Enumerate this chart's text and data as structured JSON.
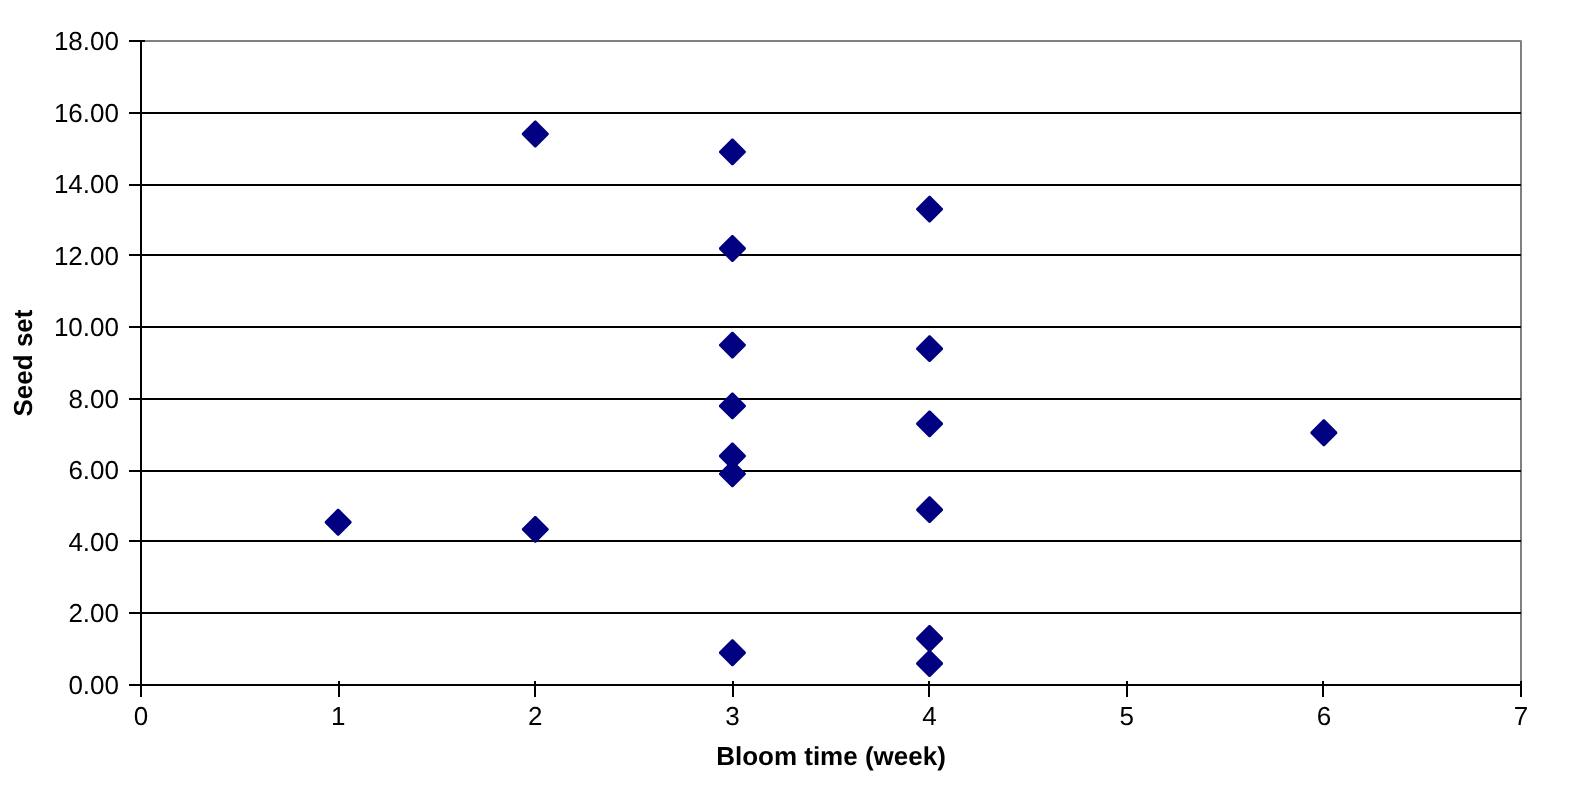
{
  "chart_data": {
    "type": "scatter",
    "xlabel": "Bloom time (week)",
    "ylabel": "Seed set",
    "x": [
      1,
      2,
      2,
      3,
      3,
      3,
      3,
      3,
      3,
      3,
      4,
      4,
      4,
      4,
      4,
      4,
      6
    ],
    "values": [
      4.55,
      15.4,
      4.35,
      14.9,
      12.2,
      9.5,
      7.8,
      6.4,
      5.9,
      0.9,
      13.3,
      9.4,
      7.3,
      4.9,
      1.3,
      0.6,
      7.05
    ],
    "color": "#000080",
    "marker": "diamond",
    "xlim": [
      0,
      7
    ],
    "xticks": [
      0,
      1,
      2,
      3,
      4,
      5,
      6,
      7
    ],
    "ylim": [
      0,
      18
    ],
    "yticks": [
      {
        "value": 0,
        "label": "0.00"
      },
      {
        "value": 2,
        "label": "2.00"
      },
      {
        "value": 4,
        "label": "4.00"
      },
      {
        "value": 6,
        "label": "6.00"
      },
      {
        "value": 8,
        "label": "8.00"
      },
      {
        "value": 10,
        "label": "10.00"
      },
      {
        "value": 12,
        "label": "12.00"
      },
      {
        "value": 14,
        "label": "14.00"
      },
      {
        "value": 16,
        "label": "16.00"
      },
      {
        "value": 18,
        "label": "18.00"
      }
    ],
    "grid": "y"
  }
}
